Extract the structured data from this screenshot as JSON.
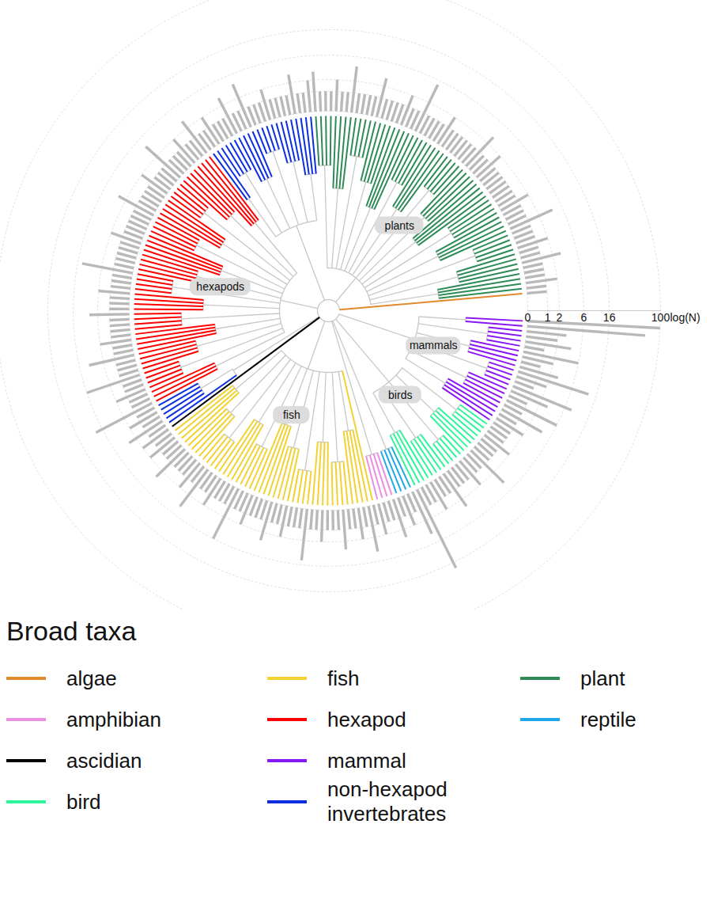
{
  "chart_data": {
    "type": "radial_tree",
    "legend_title": "Broad taxa",
    "series": [
      {
        "name": "algae",
        "color": "#e08a2c"
      },
      {
        "name": "amphibian",
        "color": "#ea8fe2"
      },
      {
        "name": "ascidian",
        "color": "#000000"
      },
      {
        "name": "bird",
        "color": "#2ff59a"
      },
      {
        "name": "fish",
        "color": "#f2d232"
      },
      {
        "name": "hexapod",
        "color": "#ff0000"
      },
      {
        "name": "mammal",
        "color": "#8a16f5"
      },
      {
        "name": "non-hexapod invertebrates",
        "color": "#0a2ee0"
      },
      {
        "name": "plant",
        "color": "#2e8b57"
      },
      {
        "name": "reptile",
        "color": "#1fa8e8"
      }
    ],
    "clades": [
      {
        "taxon": "algae",
        "values": [
          1
        ]
      },
      {
        "taxon": "plant",
        "values": [
          1,
          2,
          1,
          1,
          1,
          3,
          1,
          1,
          2,
          1,
          1,
          1,
          4,
          1,
          1,
          1,
          2,
          1,
          1,
          1,
          1,
          1,
          1,
          1,
          2,
          1,
          1,
          3,
          1,
          1,
          1,
          1,
          1,
          1,
          2,
          1,
          1,
          1,
          1,
          5,
          1,
          1,
          2,
          1,
          1,
          1,
          1,
          3,
          1,
          1,
          1,
          1,
          4,
          1,
          1,
          2,
          1,
          1,
          1,
          3
        ]
      },
      {
        "taxon": "non-hexapod invertebrates",
        "values": [
          2,
          1,
          1,
          3,
          1,
          1,
          1,
          1,
          2,
          1,
          1,
          1,
          4,
          1,
          1,
          3,
          1,
          1,
          1,
          2,
          1,
          1
        ]
      },
      {
        "taxon": "hexapod",
        "values": [
          3,
          1,
          1,
          2,
          1,
          1,
          1,
          4,
          1,
          1,
          1,
          2,
          1,
          1,
          1,
          1,
          3,
          1,
          1,
          1,
          1,
          1,
          2,
          1,
          1,
          1,
          1,
          1,
          5,
          1,
          1,
          1,
          2,
          1,
          1,
          1,
          3,
          1,
          1,
          1,
          1,
          2,
          1,
          1,
          4,
          1,
          1,
          1,
          6,
          1,
          1,
          2,
          1,
          1,
          8
        ]
      },
      {
        "taxon": "non-hexapod invertebrates",
        "values": [
          1,
          2,
          1,
          3,
          1
        ]
      },
      {
        "taxon": "ascidian",
        "values": [
          2
        ]
      },
      {
        "taxon": "fish",
        "values": [
          1,
          2,
          1,
          1,
          3,
          1,
          1,
          1,
          2,
          1,
          4,
          1,
          1,
          2,
          1,
          1,
          1,
          6,
          1,
          1,
          2,
          1,
          1,
          1,
          3,
          1,
          1,
          2,
          1,
          1,
          1,
          5,
          1,
          1,
          2,
          1,
          1,
          1,
          3,
          1,
          1,
          2,
          1,
          4,
          1
        ]
      },
      {
        "taxon": "amphibian",
        "values": [
          2,
          1,
          1,
          3
        ]
      },
      {
        "taxon": "reptile",
        "values": [
          1,
          2,
          1,
          4
        ]
      },
      {
        "taxon": "bird",
        "values": [
          20,
          1,
          1,
          2,
          1,
          1,
          3,
          1,
          1,
          1,
          2,
          1,
          1,
          4,
          1,
          1,
          1,
          2,
          1,
          1
        ]
      },
      {
        "taxon": "mammal",
        "values": [
          1,
          2,
          1,
          4,
          1,
          6,
          1,
          3,
          8,
          1,
          2,
          12,
          3,
          1,
          2,
          6,
          1,
          4,
          2,
          3,
          60,
          100
        ]
      }
    ],
    "annotations": [
      {
        "text": "plants",
        "taxon": "plant"
      },
      {
        "text": "hexapods",
        "taxon": "hexapod"
      },
      {
        "text": "fish",
        "taxon": "fish"
      },
      {
        "text": "birds",
        "taxon": "bird"
      },
      {
        "text": "mammals",
        "taxon": "mammal"
      }
    ],
    "ylabel": "log(N)",
    "ylim": [
      0,
      100
    ],
    "yticks": [
      0,
      1,
      2,
      6,
      16,
      100
    ],
    "log": "y",
    "grid": true
  }
}
